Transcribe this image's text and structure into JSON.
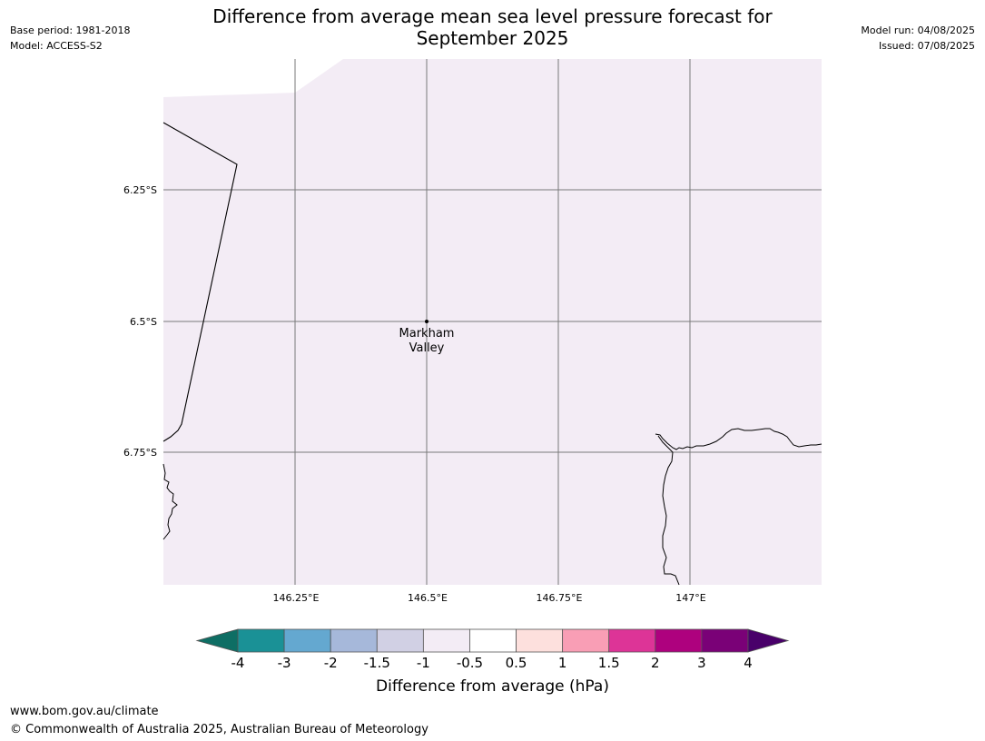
{
  "header": {
    "base_period": "Base period: 1981-2018",
    "model": "Model: ACCESS-S2",
    "title_line1": "Difference from average mean sea level pressure forecast for",
    "title_line2": "September 2025",
    "model_run": "Model run: 04/08/2025",
    "issued": "Issued: 07/08/2025"
  },
  "map": {
    "fill_color": "#f3ecf5",
    "x_ticks": [
      "146.25°E",
      "146.5°E",
      "146.75°E",
      "147°E"
    ],
    "y_ticks": [
      "6.25°S",
      "6.5°S",
      "6.75°S"
    ],
    "place": {
      "name_line1": "Markham",
      "name_line2": "Valley"
    }
  },
  "colorbar": {
    "label": "Difference from average (hPa)",
    "ticks": [
      "-4",
      "-3",
      "-2",
      "-1.5",
      "-1",
      "-0.5",
      "0.5",
      "1",
      "1.5",
      "2",
      "3",
      "4"
    ],
    "colors": [
      "#0e6e64",
      "#1a9196",
      "#64a8d0",
      "#a6b8da",
      "#d1d0e4",
      "#f3ecf5",
      "#ffffff",
      "#fde0dd",
      "#f99eb5",
      "#dd3497",
      "#ae017e",
      "#7a0177",
      "#49006a"
    ]
  },
  "footer": {
    "url": "www.bom.gov.au/climate",
    "copyright": "© Commonwealth of Australia 2025, Australian Bureau of Meteorology"
  }
}
